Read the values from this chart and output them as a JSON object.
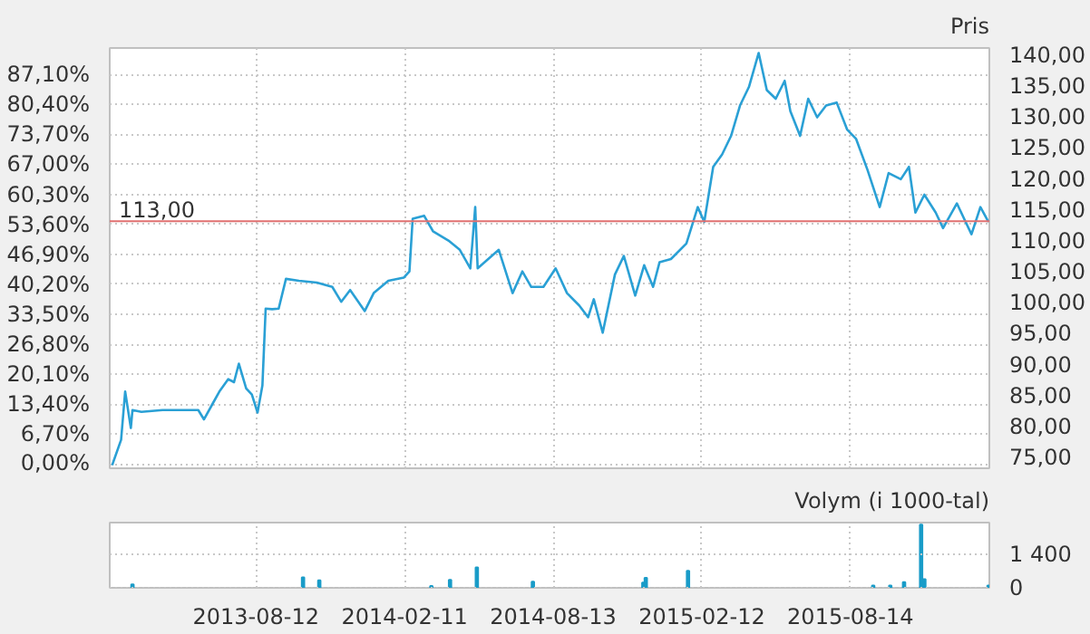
{
  "chart_data": [
    {
      "type": "line",
      "y2label": "Pris",
      "xlim": [
        "2013-02-13",
        "2016-02-01"
      ],
      "xticks": [
        "2013-08-12",
        "2014-02-11",
        "2014-08-13",
        "2015-02-12",
        "2015-08-14"
      ],
      "tick_labels": "y",
      "grid": true,
      "ylim": [
        -0.9,
        93
      ],
      "yticks": [
        {
          "value": 0,
          "label": "0,00%"
        },
        {
          "value": 6.7,
          "label": "6,70%"
        },
        {
          "value": 13.4,
          "label": "13,40%"
        },
        {
          "value": 20.1,
          "label": "20,10%"
        },
        {
          "value": 26.8,
          "label": "26,80%"
        },
        {
          "value": 33.5,
          "label": "33,50%"
        },
        {
          "value": 40.2,
          "label": "40,20%"
        },
        {
          "value": 46.9,
          "label": "46,90%"
        },
        {
          "value": 53.6,
          "label": "53,60%"
        },
        {
          "value": 60.3,
          "label": "60,30%"
        },
        {
          "value": 67.0,
          "label": "67,00%"
        },
        {
          "value": 73.7,
          "label": "73,70%"
        },
        {
          "value": 80.4,
          "label": "80,40%"
        },
        {
          "value": 87.1,
          "label": "87,10%"
        }
      ],
      "y2lim": [
        73.1,
        141
      ],
      "y2ticks": [
        {
          "value": 75,
          "label": "75,00"
        },
        {
          "value": 80,
          "label": "80,00"
        },
        {
          "value": 85,
          "label": "85,00"
        },
        {
          "value": 90,
          "label": "90,00"
        },
        {
          "value": 95,
          "label": "95,00"
        },
        {
          "value": 100,
          "label": "100,00"
        },
        {
          "value": 105,
          "label": "105,00"
        },
        {
          "value": 110,
          "label": "110,00"
        },
        {
          "value": 115,
          "label": "115,00"
        },
        {
          "value": 120,
          "label": "120,00"
        },
        {
          "value": 125,
          "label": "125,00"
        },
        {
          "value": 130,
          "label": "130,00"
        },
        {
          "value": 135,
          "label": "135,00"
        },
        {
          "value": 140,
          "label": "140,00"
        }
      ],
      "ref_lines": [
        {
          "axis": "y2",
          "value": 113,
          "label": "113,00",
          "color": "#e07070"
        }
      ],
      "series": [
        {
          "axis": "y2",
          "color": "#2aa0d5",
          "x": [
            "2013-02-16",
            "2013-02-27",
            "2013-03-04",
            "2013-03-11",
            "2013-03-13",
            "2013-03-24",
            "2013-04-19",
            "2013-05-18",
            "2013-06-02",
            "2013-06-09",
            "2013-06-20",
            "2013-06-28",
            "2013-07-09",
            "2013-07-16",
            "2013-07-22",
            "2013-07-31",
            "2013-08-07",
            "2013-08-14",
            "2013-08-20",
            "2013-08-24",
            "2013-09-01",
            "2013-09-09",
            "2013-09-18",
            "2013-10-04",
            "2013-10-26",
            "2013-11-14",
            "2013-11-25",
            "2013-12-06",
            "2013-12-24",
            "2014-01-04",
            "2014-01-22",
            "2014-02-10",
            "2014-02-17",
            "2014-02-21",
            "2014-03-07",
            "2014-03-18",
            "2014-04-06",
            "2014-04-20",
            "2014-05-03",
            "2014-05-09",
            "2014-05-12",
            "2014-05-25",
            "2014-06-07",
            "2014-06-24",
            "2014-07-06",
            "2014-07-17",
            "2014-08-01",
            "2014-08-16",
            "2014-08-30",
            "2014-09-14",
            "2014-09-25",
            "2014-10-02",
            "2014-10-13",
            "2014-10-28",
            "2014-11-08",
            "2014-11-22",
            "2014-12-03",
            "2014-12-14",
            "2014-12-22",
            "2015-01-05",
            "2015-01-24",
            "2015-02-07",
            "2015-02-15",
            "2015-02-26",
            "2015-03-09",
            "2015-03-20",
            "2015-03-31",
            "2015-04-11",
            "2015-04-23",
            "2015-05-03",
            "2015-05-14",
            "2015-05-25",
            "2015-06-01",
            "2015-06-13",
            "2015-06-23",
            "2015-07-04",
            "2015-07-15",
            "2015-07-28",
            "2015-08-10",
            "2015-08-21",
            "2015-09-04",
            "2015-09-19",
            "2015-09-30",
            "2015-10-15",
            "2015-10-25",
            "2015-11-02",
            "2015-11-13",
            "2015-11-27",
            "2015-12-06",
            "2015-12-23",
            "2016-01-10",
            "2016-01-21",
            "2016-01-31"
          ],
          "values": [
            73.6,
            77.7,
            85.5,
            79.6,
            82.5,
            82.2,
            82.5,
            82.5,
            82.5,
            81.0,
            83.6,
            85.5,
            87.5,
            87.0,
            90.0,
            86.0,
            85.0,
            82.1,
            86.5,
            98.9,
            98.8,
            98.9,
            103.7,
            103.4,
            103.1,
            102.4,
            100.0,
            101.9,
            98.5,
            101.4,
            103.4,
            103.9,
            104.9,
            113.4,
            113.9,
            111.4,
            109.9,
            108.4,
            105.4,
            115.3,
            105.4,
            106.9,
            108.4,
            101.4,
            104.9,
            102.4,
            102.4,
            105.4,
            101.4,
            99.4,
            97.5,
            100.4,
            95.0,
            104.4,
            107.4,
            101.0,
            105.9,
            102.4,
            106.4,
            106.9,
            109.4,
            115.3,
            112.9,
            121.8,
            123.8,
            126.8,
            131.7,
            134.7,
            140.2,
            134.2,
            132.8,
            135.7,
            130.8,
            126.8,
            132.8,
            129.8,
            131.7,
            132.2,
            127.8,
            126.3,
            121.3,
            115.3,
            120.8,
            119.8,
            121.8,
            114.4,
            117.3,
            114.4,
            111.9,
            115.9,
            110.9,
            115.3,
            112.9
          ]
        }
      ]
    },
    {
      "type": "bar",
      "y2label": "Volym (i 1000-tal)",
      "xlim": [
        "2013-02-13",
        "2016-02-01"
      ],
      "xticks": [
        "2013-08-12",
        "2014-02-11",
        "2014-08-13",
        "2015-02-12",
        "2015-08-14"
      ],
      "grid": true,
      "y2lim": [
        0,
        2729
      ],
      "y2ticks": [
        0,
        {
          "value": 1400,
          "label": "1 400"
        }
      ],
      "series": [
        {
          "axis": "y2",
          "color": "#1a9cc8",
          "x": [
            "2013-03-13",
            "2013-10-09",
            "2013-10-29",
            "2014-03-16",
            "2014-04-08",
            "2014-05-11",
            "2014-07-19",
            "2014-12-02",
            "2014-12-05",
            "2015-01-26",
            "2015-09-11",
            "2015-10-02",
            "2015-10-19",
            "2015-11-09",
            "2015-11-13",
            "2016-01-31"
          ],
          "values": [
            146,
            436,
            309,
            73,
            327,
            855,
            255,
            218,
            418,
            709,
            91,
            91,
            236,
            2639,
            364,
            91
          ]
        }
      ]
    }
  ]
}
